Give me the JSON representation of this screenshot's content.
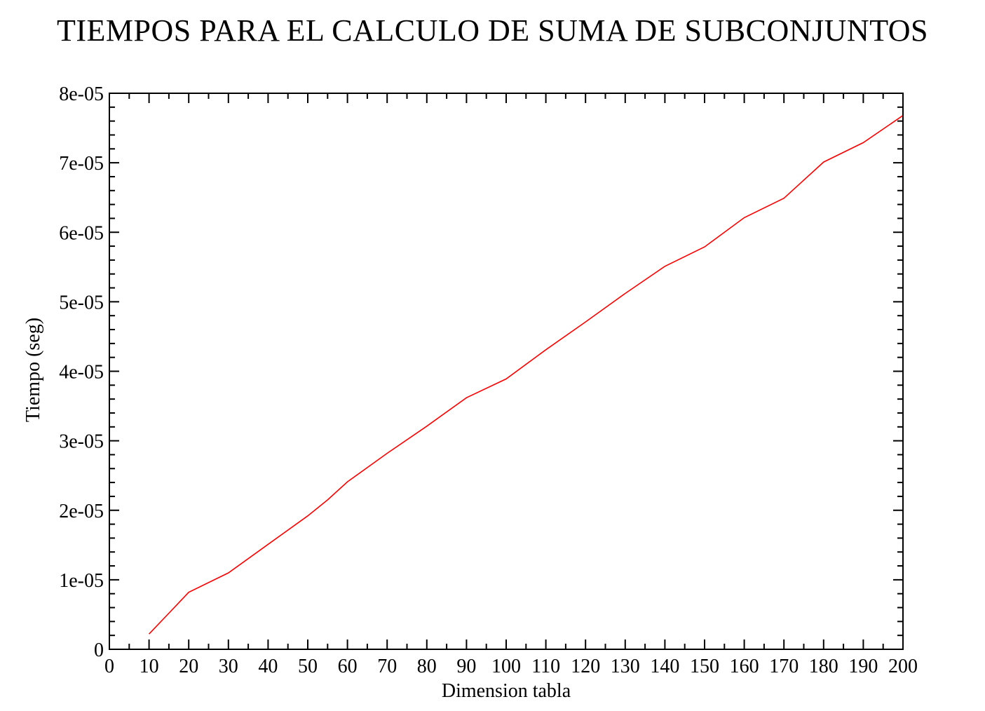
{
  "chart_data": {
    "type": "line",
    "title": "TIEMPOS PARA EL CALCULO DE SUMA DE SUBCONJUNTOS",
    "xlabel": "Dimension tabla",
    "ylabel": "Tiempo (seg)",
    "xlim": [
      0,
      200
    ],
    "ylim": [
      0,
      8e-05
    ],
    "x_ticks": [
      0,
      10,
      20,
      30,
      40,
      50,
      60,
      70,
      80,
      90,
      100,
      110,
      120,
      130,
      140,
      150,
      160,
      170,
      180,
      190,
      200
    ],
    "x_tick_labels": [
      "0",
      "10",
      "20",
      "30",
      "40",
      "50",
      "60",
      "70",
      "80",
      "90",
      "100",
      "110",
      "120",
      "130",
      "140",
      "150",
      "160",
      "170",
      "180",
      "190",
      "200"
    ],
    "y_ticks": [
      0,
      1e-05,
      2e-05,
      3e-05,
      4e-05,
      5e-05,
      6e-05,
      7e-05,
      8e-05
    ],
    "y_tick_labels": [
      "0",
      "1e-05",
      "2e-05",
      "3e-05",
      "4e-05",
      "5e-05",
      "6e-05",
      "7e-05",
      "8e-05"
    ],
    "grid": false,
    "series": [
      {
        "color": "#ff0000",
        "x": [
          10,
          15,
          20,
          30,
          40,
          50,
          55,
          60,
          70,
          80,
          90,
          100,
          110,
          120,
          130,
          140,
          150,
          160,
          170,
          175,
          180,
          190,
          200
        ],
        "y": [
          2.2e-06,
          5.2e-06,
          8.2e-06,
          1.1e-05,
          1.51e-05,
          1.92e-05,
          2.15e-05,
          2.41e-05,
          2.82e-05,
          3.21e-05,
          3.62e-05,
          3.89e-05,
          4.31e-05,
          4.71e-05,
          5.12e-05,
          5.51e-05,
          5.79e-05,
          6.21e-05,
          6.49e-05,
          6.75e-05,
          7.01e-05,
          7.29e-05,
          7.68e-05
        ]
      }
    ]
  }
}
